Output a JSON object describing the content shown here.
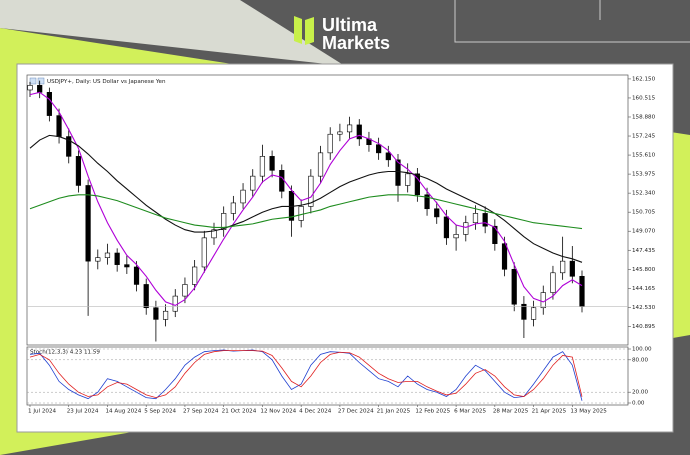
{
  "header": {
    "brand_line_1": "Ultima",
    "brand_line_2": "Markets"
  },
  "chart_data": [
    {
      "type": "candlestick",
      "title": "USDJPY+, Daily:  US Dollar vs Japanese Yen",
      "categories": [
        "1 Jul 2024",
        null,
        null,
        null,
        "23 Jul 2024",
        null,
        null,
        null,
        "14 Aug 2024",
        null,
        null,
        null,
        "5 Sep 2024",
        null,
        null,
        null,
        "27 Sep 2024",
        null,
        null,
        null,
        "21 Oct 2024",
        null,
        null,
        null,
        "12 Nov 2024",
        null,
        null,
        null,
        "4 Dec 2024",
        null,
        null,
        null,
        "27 Dec 2024",
        null,
        null,
        null,
        "21 Jan 2025",
        null,
        null,
        null,
        "12 Feb 2025",
        null,
        null,
        null,
        "6 Mar 2025",
        null,
        null,
        null,
        "28 Mar 2025",
        null,
        null,
        null,
        "21 Apr 2025",
        null,
        null,
        null,
        "13 May 2025",
        null
      ],
      "open": [
        161.2,
        161.6,
        161.0,
        159.0,
        157.2,
        155.5,
        153.0,
        146.5,
        146.8,
        147.2,
        146.2,
        146.0,
        144.5,
        142.5,
        141.5,
        142.2,
        143.5,
        144.5,
        146.0,
        148.5,
        149.2,
        150.6,
        151.5,
        152.6,
        153.8,
        155.5,
        154.3,
        152.5,
        150.0,
        151.2,
        153.8,
        155.8,
        157.4,
        157.6,
        158.2,
        157.0,
        156.5,
        155.8,
        155.2,
        153.0,
        154.0,
        152.2,
        151.0,
        150.3,
        148.5,
        148.8,
        149.8,
        150.6,
        149.5,
        148.0,
        145.8,
        142.8,
        141.5,
        142.5,
        143.8,
        145.5,
        146.5,
        145.2
      ],
      "high": [
        161.9,
        162.0,
        161.4,
        159.6,
        157.9,
        156.0,
        153.5,
        147.5,
        148.0,
        147.6,
        147.0,
        146.5,
        145.0,
        143.1,
        142.8,
        144.1,
        145.1,
        146.6,
        149.1,
        149.8,
        151.2,
        152.1,
        153.2,
        154.4,
        156.5,
        156.0,
        154.8,
        153.0,
        151.8,
        154.4,
        156.4,
        158.0,
        158.3,
        158.9,
        158.7,
        157.6,
        157.1,
        156.4,
        155.7,
        154.9,
        154.5,
        152.8,
        151.6,
        150.9,
        149.6,
        150.4,
        151.3,
        151.2,
        150.1,
        148.6,
        146.4,
        143.5,
        143.1,
        144.4,
        146.1,
        148.6,
        147.8,
        145.7
      ],
      "low": [
        160.6,
        160.5,
        158.5,
        156.6,
        154.9,
        152.4,
        141.8,
        145.8,
        146.2,
        145.6,
        145.4,
        143.9,
        141.9,
        139.6,
        140.9,
        141.7,
        142.9,
        144.0,
        145.5,
        147.9,
        148.6,
        150.0,
        151.0,
        152.0,
        153.2,
        153.7,
        151.9,
        148.6,
        149.4,
        150.6,
        153.2,
        155.2,
        156.8,
        157.0,
        156.4,
        155.9,
        155.2,
        154.6,
        151.6,
        152.4,
        151.6,
        150.4,
        149.7,
        147.9,
        147.4,
        148.2,
        149.2,
        148.9,
        147.4,
        145.2,
        142.2,
        139.9,
        140.9,
        141.9,
        143.2,
        144.9,
        144.6,
        142.1
      ],
      "close": [
        161.6,
        161.0,
        159.0,
        157.2,
        155.5,
        153.0,
        146.5,
        146.8,
        147.2,
        146.2,
        146.0,
        144.5,
        142.5,
        141.5,
        142.2,
        143.5,
        144.5,
        146.0,
        148.5,
        149.2,
        150.6,
        151.5,
        152.6,
        153.8,
        155.5,
        154.3,
        152.5,
        150.0,
        151.2,
        153.8,
        155.8,
        157.4,
        157.6,
        158.2,
        157.0,
        156.5,
        155.8,
        155.2,
        153.0,
        154.0,
        152.2,
        151.0,
        150.3,
        148.5,
        148.8,
        149.8,
        150.6,
        149.5,
        148.0,
        145.8,
        142.8,
        141.5,
        142.5,
        143.8,
        145.5,
        146.5,
        145.2,
        142.6
      ],
      "up_color": "#ffffff",
      "down_color": "#000000",
      "series": [
        {
          "color": "#b000d8",
          "values": [
            160.8,
            161.0,
            160.4,
            159.3,
            157.8,
            156.2,
            153.8,
            151.6,
            149.8,
            148.3,
            147.0,
            146.2,
            145.2,
            144.0,
            143.0,
            142.7,
            143.2,
            144.2,
            145.6,
            147.0,
            148.4,
            149.7,
            150.9,
            152.0,
            153.3,
            153.9,
            153.7,
            152.6,
            151.7,
            152.0,
            153.2,
            154.8,
            156.0,
            157.0,
            157.3,
            157.0,
            156.6,
            156.0,
            155.0,
            154.4,
            153.6,
            152.5,
            151.5,
            150.4,
            149.6,
            149.4,
            149.7,
            149.8,
            149.4,
            148.2,
            146.2,
            144.3,
            143.3,
            143.0,
            143.5,
            144.4,
            144.9,
            144.4
          ]
        },
        {
          "color": "#111111",
          "values": [
            156.2,
            156.9,
            157.3,
            157.2,
            156.9,
            156.4,
            155.7,
            154.9,
            154.2,
            153.4,
            152.7,
            152.0,
            151.3,
            150.7,
            150.1,
            149.6,
            149.2,
            149.0,
            149.0,
            149.1,
            149.3,
            149.6,
            149.9,
            150.3,
            150.7,
            151.0,
            151.2,
            151.2,
            151.3,
            151.5,
            151.9,
            152.4,
            152.9,
            153.3,
            153.6,
            153.9,
            154.1,
            154.2,
            154.2,
            154.1,
            153.9,
            153.6,
            153.2,
            152.7,
            152.3,
            151.9,
            151.5,
            151.1,
            150.6,
            150.0,
            149.3,
            148.6,
            148.0,
            147.6,
            147.2,
            146.9,
            146.7,
            146.4
          ]
        },
        {
          "color": "#1e8c1e",
          "values": [
            151.0,
            151.3,
            151.6,
            151.9,
            152.1,
            152.2,
            152.2,
            152.1,
            151.9,
            151.7,
            151.4,
            151.1,
            150.8,
            150.5,
            150.2,
            150.0,
            149.8,
            149.6,
            149.5,
            149.4,
            149.4,
            149.5,
            149.6,
            149.7,
            149.9,
            150.1,
            150.2,
            150.3,
            150.5,
            150.7,
            150.9,
            151.2,
            151.4,
            151.6,
            151.8,
            152.0,
            152.1,
            152.2,
            152.2,
            152.2,
            152.1,
            152.0,
            151.8,
            151.6,
            151.4,
            151.2,
            151.0,
            150.8,
            150.6,
            150.4,
            150.2,
            150.0,
            149.8,
            149.7,
            149.6,
            149.5,
            149.4,
            149.3
          ]
        }
      ],
      "ylim": [
        139.3,
        162.4
      ],
      "yticks": [
        {
          "value": 162.15,
          "label": "162.150"
        },
        160.515,
        {
          "value": 158.88,
          "label": "158.880"
        },
        157.245,
        {
          "value": 155.61,
          "label": "155.610"
        },
        153.975,
        {
          "value": 152.34,
          "label": "152.340"
        },
        150.705,
        {
          "value": 149.07,
          "label": "149.070"
        },
        147.435,
        {
          "value": 145.8,
          "label": "145.800"
        },
        144.165,
        {
          "value": 142.53,
          "label": "142.530"
        },
        140.895
      ],
      "grid": false
    },
    {
      "type": "line",
      "title": "Stoch(12,3,3) 4.23 11.59",
      "series": [
        {
          "color": "#1f3fd0",
          "values": [
            90,
            92,
            70,
            40,
            25,
            15,
            8,
            20,
            45,
            40,
            30,
            20,
            10,
            8,
            25,
            45,
            70,
            85,
            95,
            97,
            98,
            96,
            97,
            98,
            95,
            80,
            50,
            25,
            35,
            70,
            90,
            95,
            94,
            92,
            75,
            60,
            45,
            40,
            30,
            50,
            35,
            25,
            20,
            12,
            25,
            50,
            70,
            60,
            40,
            20,
            10,
            12,
            35,
            60,
            85,
            95,
            70,
            4.23
          ]
        },
        {
          "color": "#e02020",
          "values": [
            85,
            90,
            80,
            55,
            35,
            20,
            12,
            15,
            30,
            38,
            35,
            25,
            15,
            10,
            15,
            30,
            55,
            75,
            90,
            95,
            97,
            97,
            97,
            97,
            96,
            88,
            65,
            40,
            30,
            50,
            75,
            90,
            94,
            93,
            85,
            70,
            55,
            45,
            38,
            40,
            40,
            30,
            22,
            15,
            18,
            35,
            55,
            62,
            50,
            30,
            15,
            12,
            25,
            45,
            70,
            88,
            85,
            11.59
          ]
        }
      ],
      "ylim": [
        0,
        100
      ],
      "yticks": [
        {
          "value": 100,
          "label": "100.00"
        },
        {
          "value": 80,
          "label": "80.00"
        },
        {
          "value": 20,
          "label": "20.00"
        },
        {
          "value": 0,
          "label": "0.00"
        }
      ],
      "levels": true
    }
  ]
}
